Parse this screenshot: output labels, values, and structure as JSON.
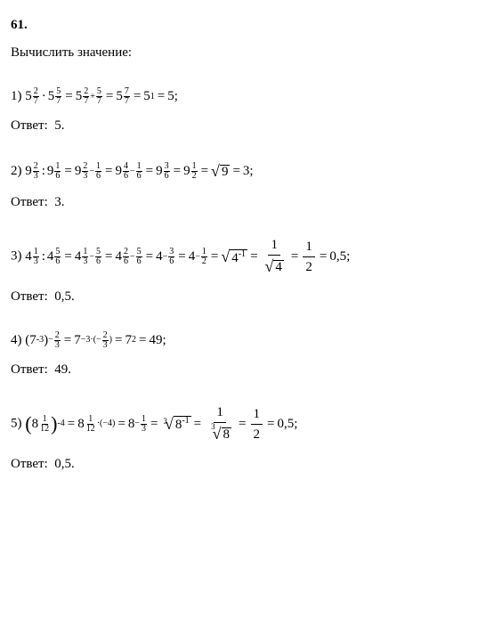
{
  "problem": {
    "number": "61",
    "title": "Вычислить значение:"
  },
  "answer_label": "Ответ:",
  "colors": {
    "text": "#000000",
    "background": "#ffffff"
  },
  "typography": {
    "base_font_size_pt": 11,
    "sup_font_size_pt": 7.5,
    "font_family": "Times New Roman"
  },
  "solutions": [
    {
      "index": "1)",
      "base": 5,
      "operation": "multiply",
      "exp1": {
        "num": 2,
        "den": 7
      },
      "exp2": {
        "num": 5,
        "den": 7
      },
      "steps": [
        {
          "type": "power_frac",
          "base": 5,
          "exp_parts": [
            {
              "num": 2,
              "den": 7
            },
            "+",
            {
              "num": 5,
              "den": 7
            }
          ]
        },
        {
          "type": "power_frac",
          "base": 5,
          "exp": {
            "num": 7,
            "den": 7
          }
        },
        {
          "type": "power_int",
          "base": 5,
          "exp": 1
        },
        {
          "type": "value",
          "val": 5
        }
      ],
      "answer": "5"
    },
    {
      "index": "2)",
      "base": 9,
      "operation": "divide",
      "exp1": {
        "num": 2,
        "den": 3
      },
      "exp2": {
        "num": 1,
        "den": 6
      },
      "steps": [
        {
          "type": "power_frac",
          "base": 9,
          "exp_parts": [
            {
              "num": 2,
              "den": 3
            },
            "−",
            {
              "num": 1,
              "den": 6
            }
          ]
        },
        {
          "type": "power_frac",
          "base": 9,
          "exp_parts": [
            {
              "num": 4,
              "den": 6
            },
            "−",
            {
              "num": 1,
              "den": 6
            }
          ]
        },
        {
          "type": "power_frac",
          "base": 9,
          "exp": {
            "num": 3,
            "den": 6
          }
        },
        {
          "type": "power_frac",
          "base": 9,
          "exp": {
            "num": 1,
            "den": 2
          }
        },
        {
          "type": "sqrt",
          "body": 9
        },
        {
          "type": "value",
          "val": 3
        }
      ],
      "answer": "3"
    },
    {
      "index": "3)",
      "base": 4,
      "operation": "divide",
      "exp1": {
        "num": 1,
        "den": 3
      },
      "exp2": {
        "num": 5,
        "den": 6
      },
      "steps": [
        {
          "type": "power_frac",
          "base": 4,
          "exp_parts": [
            {
              "num": 1,
              "den": 3
            },
            "−",
            {
              "num": 5,
              "den": 6
            }
          ]
        },
        {
          "type": "power_frac",
          "base": 4,
          "exp_parts": [
            {
              "num": 2,
              "den": 6
            },
            "−",
            {
              "num": 5,
              "den": 6
            }
          ]
        },
        {
          "type": "power_frac_neg",
          "base": 4,
          "exp": {
            "num": 3,
            "den": 6
          }
        },
        {
          "type": "power_frac_neg",
          "base": 4,
          "exp": {
            "num": 1,
            "den": 2
          }
        },
        {
          "type": "sqrt",
          "body_base": 4,
          "body_exp": -1
        },
        {
          "type": "bigfrac",
          "num": 1,
          "den_sqrt": 4
        },
        {
          "type": "bigfrac",
          "num": 1,
          "den": 2
        },
        {
          "type": "value",
          "val": "0,5"
        }
      ],
      "answer": "0,5"
    },
    {
      "index": "4)",
      "paren_base": 7,
      "paren_exp": -3,
      "outer_exp_neg": {
        "num": 2,
        "den": 3
      },
      "steps": [
        {
          "type": "power_product",
          "base": 7,
          "exp_text": "−3·",
          "exp_paren_neg": {
            "num": 2,
            "den": 3
          }
        },
        {
          "type": "power_int",
          "base": 7,
          "exp": 2
        },
        {
          "type": "value",
          "val": 49
        }
      ],
      "answer": "49"
    },
    {
      "index": "5)",
      "paren_base": 8,
      "paren_exp_frac": {
        "num": 1,
        "den": 12
      },
      "outer_exp": -4,
      "steps": [
        {
          "type": "power_product2",
          "base": 8,
          "exp_frac": {
            "num": 1,
            "den": 12
          },
          "mult": "·(−4)"
        },
        {
          "type": "power_frac_neg",
          "base": 8,
          "exp": {
            "num": 1,
            "den": 3
          }
        },
        {
          "type": "root",
          "idx": 3,
          "body_base": 8,
          "body_exp": -1
        },
        {
          "type": "bigfrac",
          "num": 1,
          "den_root": {
            "idx": 3,
            "body": 8
          }
        },
        {
          "type": "bigfrac",
          "num": 1,
          "den": 2
        },
        {
          "type": "value",
          "val": "0,5"
        }
      ],
      "answer": "0,5"
    }
  ]
}
